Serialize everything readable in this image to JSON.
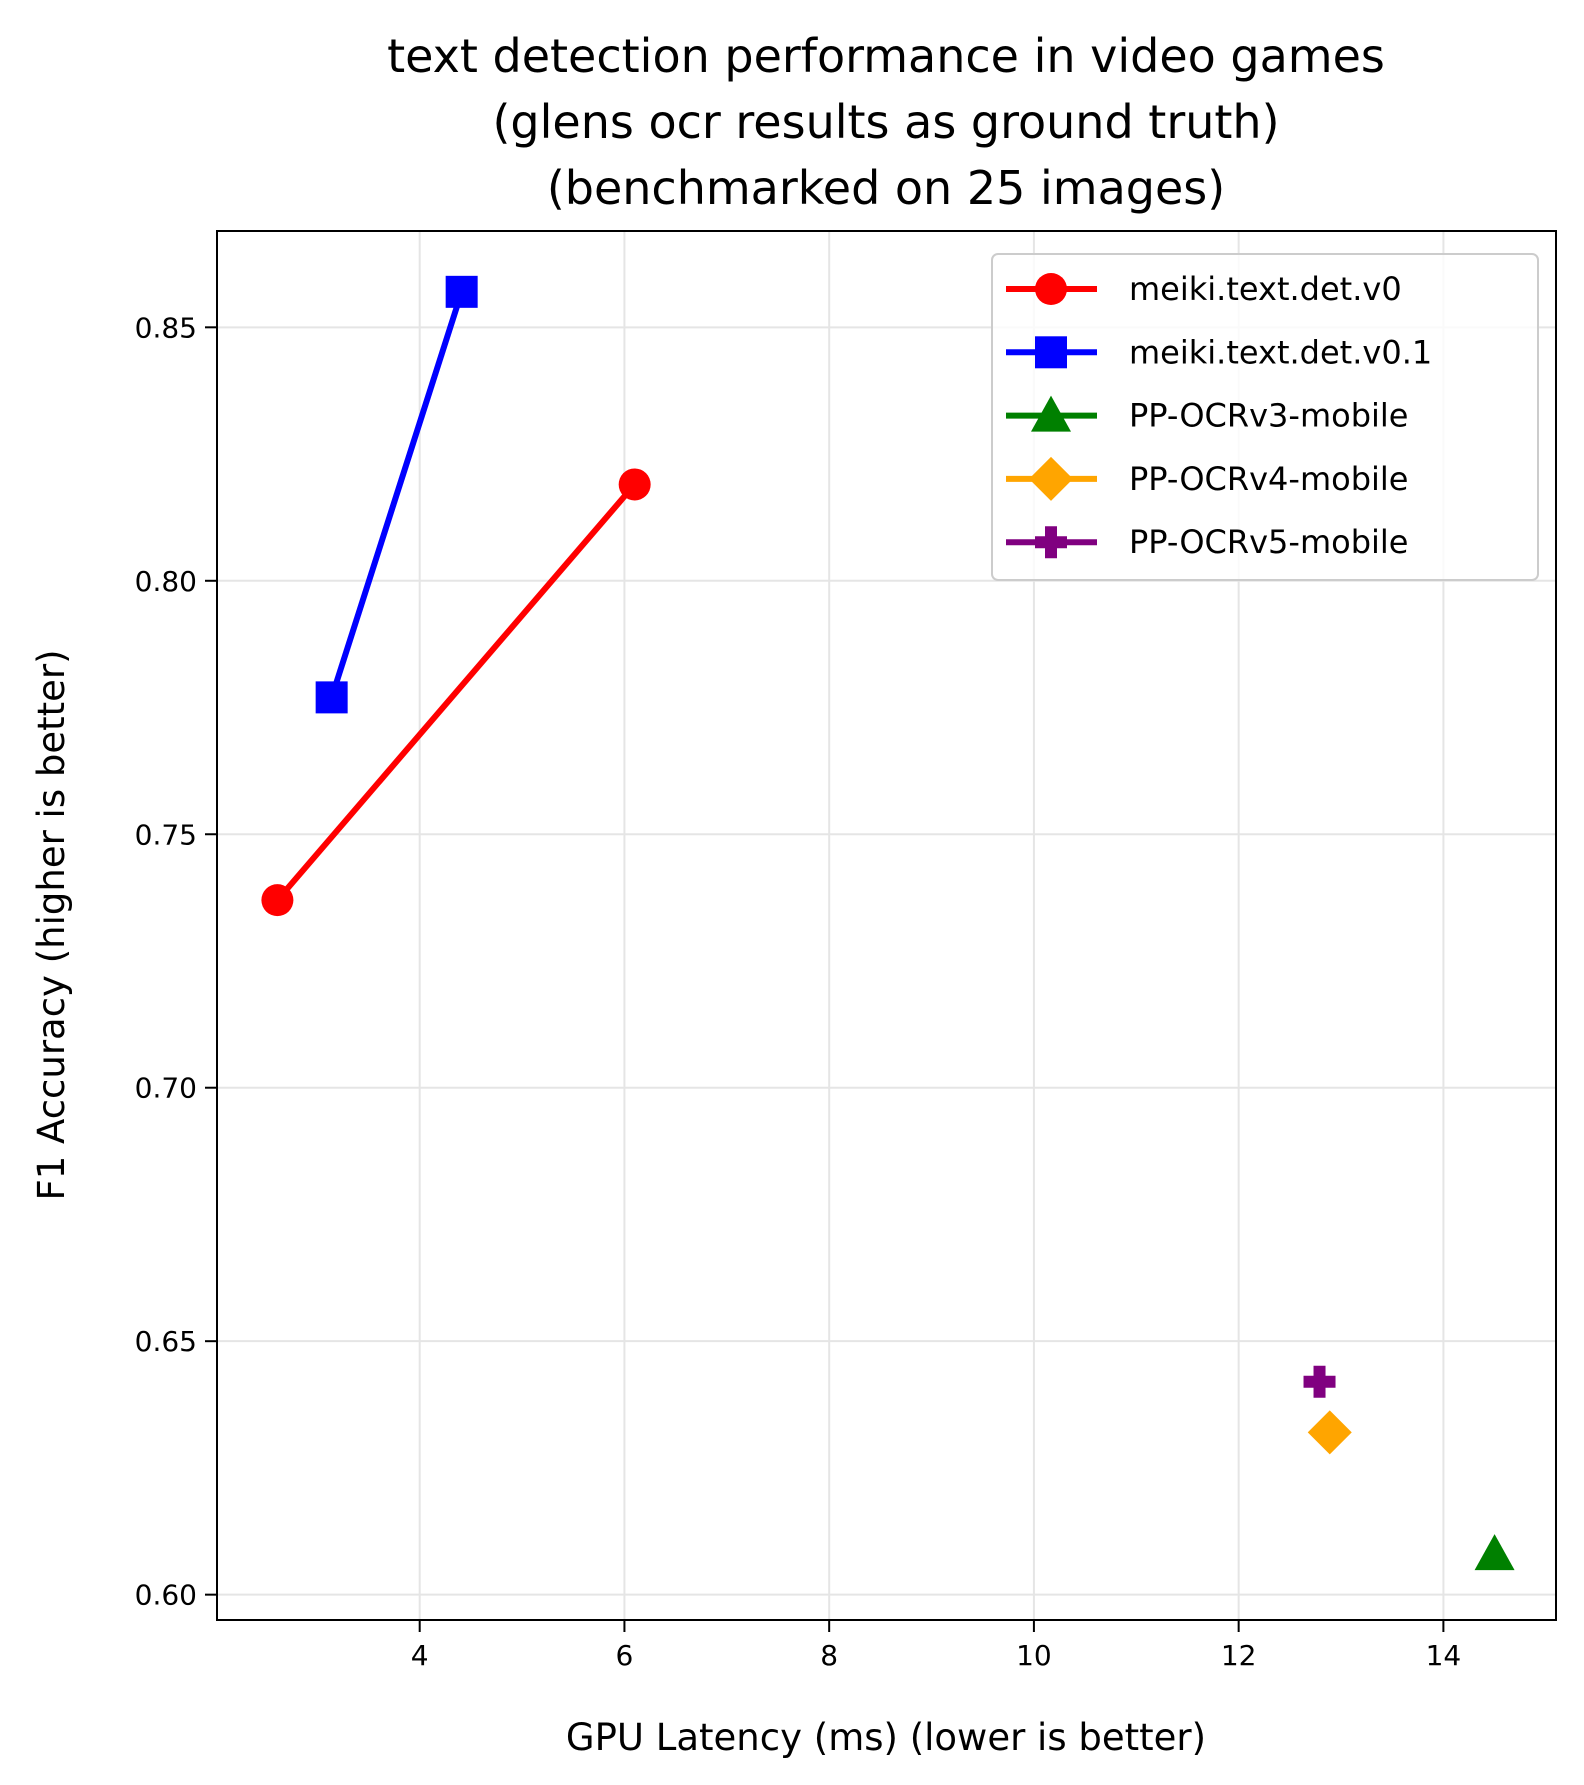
{
  "chart_data": {
    "type": "scatter",
    "title": [
      "text detection performance in video games",
      "(glens ocr results as ground truth)",
      "(benchmarked on 25 images)"
    ],
    "xlabel": "GPU Latency (ms) (lower is better)",
    "ylabel": "F1 Accuracy (higher is better)",
    "xlim": [
      2.02,
      15.1
    ],
    "ylim": [
      0.595,
      0.869
    ],
    "xticks": [
      4,
      6,
      8,
      10,
      12,
      14
    ],
    "xtick_labels": [
      "4",
      "6",
      "8",
      "10",
      "12",
      "14"
    ],
    "yticks": [
      0.6,
      0.65,
      0.7,
      0.75,
      0.8,
      0.85
    ],
    "ytick_labels": [
      "0.60",
      "0.65",
      "0.70",
      "0.75",
      "0.80",
      "0.85"
    ],
    "grid": true,
    "legend_position": "top-right",
    "series": [
      {
        "name": "meiki.text.det.v0",
        "color": "#ff0000",
        "marker": "circle",
        "x": [
          2.61,
          6.1
        ],
        "y": [
          0.737,
          0.819
        ]
      },
      {
        "name": "meiki.text.det.v0.1",
        "color": "#0000ff",
        "marker": "square",
        "x": [
          3.14,
          4.41
        ],
        "y": [
          0.777,
          0.857
        ]
      },
      {
        "name": "PP-OCRv3-mobile",
        "color": "#008000",
        "marker": "triangle",
        "x": [
          14.5
        ],
        "y": [
          0.608
        ]
      },
      {
        "name": "PP-OCRv4-mobile",
        "color": "#ffa500",
        "marker": "diamond",
        "x": [
          12.89
        ],
        "y": [
          0.632
        ]
      },
      {
        "name": "PP-OCRv5-mobile",
        "color": "#800080",
        "marker": "plus",
        "x": [
          12.79
        ],
        "y": [
          0.642
        ]
      }
    ]
  }
}
